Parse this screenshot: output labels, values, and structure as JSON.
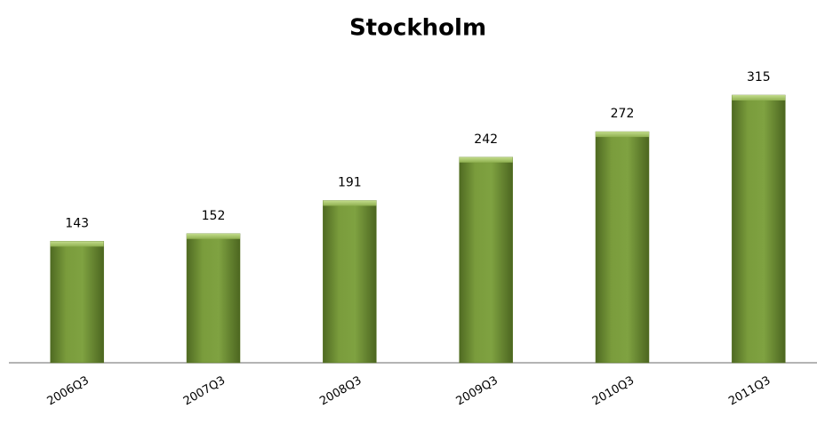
{
  "chart_data": {
    "type": "bar",
    "title": "Stockholm",
    "categories": [
      "2006Q3",
      "2007Q3",
      "2008Q3",
      "2009Q3",
      "2010Q3",
      "2011Q3"
    ],
    "values": [
      143,
      152,
      191,
      242,
      272,
      315
    ],
    "color": "#76963a"
  }
}
